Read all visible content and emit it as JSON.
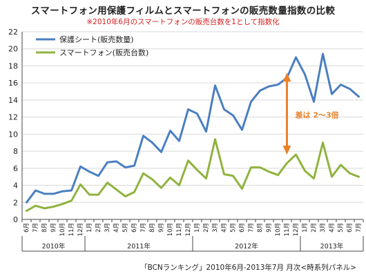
{
  "colors": {
    "smartphone": "#8fb33e",
    "film": "#4a7fbf",
    "annotation": "#e8822b",
    "subtitle": "#d21f1f",
    "grid": "#d8d8d8"
  },
  "chart_data": {
    "type": "line",
    "title": "スマートフォン用保護フィルムとスマートフォンの販売数量指数の比較",
    "subtitle": "※2010年6月のスマートフォンの販売台数を1として指数化",
    "source": "「BCNランキング」2010年6月-2013年7月 月次<時系列パネル>",
    "x_month_labels": [
      "6月",
      "7月",
      "8月",
      "9月",
      "10月",
      "11月",
      "12月",
      "1月",
      "2月",
      "3月",
      "4月",
      "5月",
      "6月",
      "7月",
      "8月",
      "9月",
      "10月",
      "11月",
      "12月",
      "1月",
      "2月",
      "3月",
      "4月",
      "5月",
      "6月",
      "7月",
      "8月",
      "9月",
      "10月",
      "11月",
      "12月",
      "1月",
      "2月",
      "3月",
      "4月",
      "5月",
      "6月",
      "7月"
    ],
    "year_groups": [
      {
        "label": "2010年",
        "start": 0,
        "end": 6
      },
      {
        "label": "2011年",
        "start": 7,
        "end": 18
      },
      {
        "label": "2012年",
        "start": 19,
        "end": 30
      },
      {
        "label": "2013年",
        "start": 31,
        "end": 37
      }
    ],
    "ylim": [
      0,
      22
    ],
    "yticks": [
      0,
      2,
      4,
      6,
      8,
      10,
      12,
      14,
      16,
      18,
      20,
      22
    ],
    "grid": true,
    "legend_position": "top-left",
    "series": [
      {
        "name": "スマートフォン(販売台数)",
        "color_key": "smartphone",
        "values": [
          1.0,
          1.6,
          1.3,
          1.5,
          1.8,
          2.2,
          4.1,
          2.9,
          2.9,
          4.3,
          3.5,
          2.7,
          3.2,
          5.4,
          4.7,
          3.7,
          4.9,
          4.0,
          6.9,
          5.8,
          4.8,
          9.4,
          5.3,
          5.1,
          3.6,
          6.1,
          6.1,
          5.6,
          5.2,
          6.6,
          7.6,
          5.7,
          4.8,
          9.0,
          5.0,
          6.4,
          5.4,
          5.0
        ]
      },
      {
        "name": "保護シート(販売数量)",
        "color_key": "film",
        "values": [
          2.0,
          3.4,
          3.0,
          3.0,
          3.3,
          3.4,
          6.2,
          5.6,
          5.1,
          6.7,
          6.8,
          6.1,
          6.3,
          9.8,
          9.0,
          7.9,
          10.4,
          9.2,
          12.9,
          12.4,
          10.3,
          15.7,
          12.9,
          12.2,
          10.5,
          13.8,
          15.1,
          15.6,
          15.8,
          16.6,
          19.0,
          17.0,
          13.8,
          19.4,
          14.7,
          15.8,
          15.3,
          14.4
        ]
      }
    ],
    "annotation": {
      "text": "差は 2〜3倍",
      "x_index": 29,
      "y_from": 7.6,
      "y_to": 17.2
    }
  }
}
